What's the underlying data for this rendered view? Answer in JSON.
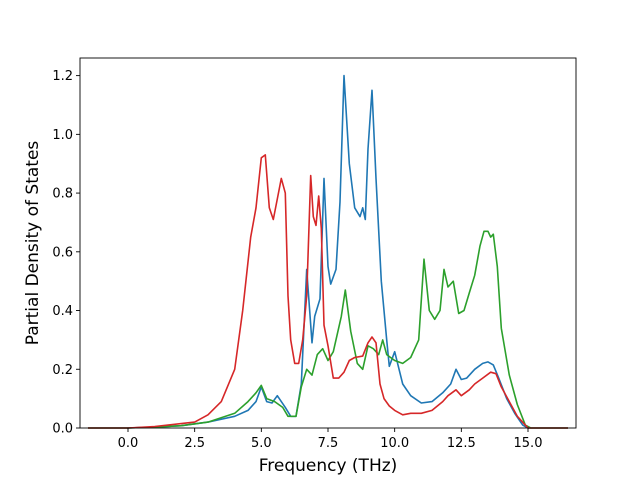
{
  "chart_data": {
    "type": "line",
    "title": "",
    "xlabel": "Frequency (THz)",
    "ylabel": "Partial Density of States",
    "xlim": [
      -1.8,
      16.8
    ],
    "ylim": [
      0,
      1.26
    ],
    "xticks": [
      0.0,
      2.5,
      5.0,
      7.5,
      10.0,
      12.5,
      15.0
    ],
    "xtick_labels": [
      "0.0",
      "2.5",
      "5.0",
      "7.5",
      "10.0",
      "12.5",
      "15.0"
    ],
    "yticks": [
      0.0,
      0.2,
      0.4,
      0.6,
      0.8,
      1.0,
      1.2
    ],
    "ytick_labels": [
      "0.0",
      "0.2",
      "0.4",
      "0.6",
      "0.8",
      "1.0",
      "1.2"
    ],
    "grid": false,
    "legend": "none",
    "series": [
      {
        "color": "#1f77b4",
        "points": [
          [
            -1.5,
            0
          ],
          [
            0,
            0
          ],
          [
            1,
            0.003
          ],
          [
            2,
            0.008
          ],
          [
            3,
            0.02
          ],
          [
            4,
            0.04
          ],
          [
            4.5,
            0.06
          ],
          [
            4.8,
            0.09
          ],
          [
            5.0,
            0.14
          ],
          [
            5.2,
            0.09
          ],
          [
            5.4,
            0.085
          ],
          [
            5.6,
            0.11
          ],
          [
            5.9,
            0.07
          ],
          [
            6.1,
            0.04
          ],
          [
            6.3,
            0.04
          ],
          [
            6.5,
            0.15
          ],
          [
            6.7,
            0.54
          ],
          [
            6.9,
            0.29
          ],
          [
            7.0,
            0.38
          ],
          [
            7.2,
            0.44
          ],
          [
            7.35,
            0.85
          ],
          [
            7.5,
            0.55
          ],
          [
            7.6,
            0.49
          ],
          [
            7.8,
            0.54
          ],
          [
            7.95,
            0.77
          ],
          [
            8.1,
            1.2
          ],
          [
            8.3,
            0.9
          ],
          [
            8.5,
            0.75
          ],
          [
            8.7,
            0.72
          ],
          [
            8.8,
            0.75
          ],
          [
            8.9,
            0.71
          ],
          [
            9.0,
            0.95
          ],
          [
            9.15,
            1.15
          ],
          [
            9.3,
            0.85
          ],
          [
            9.5,
            0.5
          ],
          [
            9.7,
            0.3
          ],
          [
            9.8,
            0.21
          ],
          [
            10.0,
            0.26
          ],
          [
            10.3,
            0.15
          ],
          [
            10.6,
            0.11
          ],
          [
            11.0,
            0.085
          ],
          [
            11.4,
            0.09
          ],
          [
            11.8,
            0.12
          ],
          [
            12.1,
            0.15
          ],
          [
            12.3,
            0.2
          ],
          [
            12.5,
            0.165
          ],
          [
            12.7,
            0.17
          ],
          [
            13.0,
            0.2
          ],
          [
            13.3,
            0.22
          ],
          [
            13.5,
            0.225
          ],
          [
            13.7,
            0.215
          ],
          [
            13.9,
            0.17
          ],
          [
            14.2,
            0.1
          ],
          [
            14.5,
            0.05
          ],
          [
            14.8,
            0.01
          ],
          [
            15.0,
            0
          ],
          [
            16.5,
            0
          ]
        ]
      },
      {
        "color": "#2ca02c",
        "points": [
          [
            -1.5,
            0
          ],
          [
            0,
            0
          ],
          [
            1,
            0.003
          ],
          [
            2,
            0.008
          ],
          [
            3,
            0.02
          ],
          [
            4,
            0.05
          ],
          [
            4.5,
            0.09
          ],
          [
            4.8,
            0.12
          ],
          [
            5.0,
            0.145
          ],
          [
            5.2,
            0.1
          ],
          [
            5.5,
            0.09
          ],
          [
            5.8,
            0.07
          ],
          [
            6.0,
            0.04
          ],
          [
            6.3,
            0.04
          ],
          [
            6.5,
            0.14
          ],
          [
            6.7,
            0.2
          ],
          [
            6.9,
            0.18
          ],
          [
            7.1,
            0.25
          ],
          [
            7.3,
            0.27
          ],
          [
            7.5,
            0.23
          ],
          [
            7.7,
            0.26
          ],
          [
            8.0,
            0.38
          ],
          [
            8.15,
            0.47
          ],
          [
            8.35,
            0.33
          ],
          [
            8.6,
            0.22
          ],
          [
            8.8,
            0.2
          ],
          [
            9.0,
            0.28
          ],
          [
            9.2,
            0.27
          ],
          [
            9.4,
            0.25
          ],
          [
            9.55,
            0.3
          ],
          [
            9.7,
            0.25
          ],
          [
            10.0,
            0.23
          ],
          [
            10.3,
            0.22
          ],
          [
            10.6,
            0.24
          ],
          [
            10.9,
            0.3
          ],
          [
            11.1,
            0.575
          ],
          [
            11.3,
            0.4
          ],
          [
            11.5,
            0.37
          ],
          [
            11.7,
            0.4
          ],
          [
            11.85,
            0.54
          ],
          [
            12.0,
            0.48
          ],
          [
            12.2,
            0.5
          ],
          [
            12.4,
            0.39
          ],
          [
            12.6,
            0.4
          ],
          [
            12.8,
            0.46
          ],
          [
            13.0,
            0.52
          ],
          [
            13.2,
            0.62
          ],
          [
            13.35,
            0.67
          ],
          [
            13.5,
            0.67
          ],
          [
            13.6,
            0.65
          ],
          [
            13.7,
            0.66
          ],
          [
            13.85,
            0.55
          ],
          [
            14.0,
            0.34
          ],
          [
            14.3,
            0.18
          ],
          [
            14.6,
            0.08
          ],
          [
            14.9,
            0.01
          ],
          [
            15.1,
            0
          ],
          [
            16.5,
            0
          ]
        ]
      },
      {
        "color": "#d62728",
        "points": [
          [
            -1.5,
            0
          ],
          [
            0,
            0
          ],
          [
            1,
            0.005
          ],
          [
            2,
            0.015
          ],
          [
            2.5,
            0.02
          ],
          [
            3,
            0.045
          ],
          [
            3.5,
            0.09
          ],
          [
            4,
            0.2
          ],
          [
            4.3,
            0.4
          ],
          [
            4.6,
            0.65
          ],
          [
            4.8,
            0.75
          ],
          [
            5.0,
            0.92
          ],
          [
            5.15,
            0.93
          ],
          [
            5.3,
            0.75
          ],
          [
            5.45,
            0.71
          ],
          [
            5.6,
            0.78
          ],
          [
            5.75,
            0.85
          ],
          [
            5.9,
            0.8
          ],
          [
            6.0,
            0.45
          ],
          [
            6.1,
            0.3
          ],
          [
            6.25,
            0.22
          ],
          [
            6.4,
            0.22
          ],
          [
            6.55,
            0.3
          ],
          [
            6.7,
            0.45
          ],
          [
            6.85,
            0.86
          ],
          [
            6.95,
            0.72
          ],
          [
            7.05,
            0.69
          ],
          [
            7.15,
            0.79
          ],
          [
            7.25,
            0.68
          ],
          [
            7.35,
            0.35
          ],
          [
            7.5,
            0.28
          ],
          [
            7.7,
            0.17
          ],
          [
            7.9,
            0.17
          ],
          [
            8.1,
            0.19
          ],
          [
            8.3,
            0.23
          ],
          [
            8.5,
            0.24
          ],
          [
            8.8,
            0.245
          ],
          [
            9.0,
            0.29
          ],
          [
            9.15,
            0.31
          ],
          [
            9.3,
            0.29
          ],
          [
            9.45,
            0.15
          ],
          [
            9.6,
            0.1
          ],
          [
            9.8,
            0.075
          ],
          [
            10.0,
            0.06
          ],
          [
            10.3,
            0.045
          ],
          [
            10.6,
            0.05
          ],
          [
            11.0,
            0.05
          ],
          [
            11.4,
            0.06
          ],
          [
            11.8,
            0.09
          ],
          [
            12.0,
            0.11
          ],
          [
            12.3,
            0.13
          ],
          [
            12.5,
            0.11
          ],
          [
            12.8,
            0.13
          ],
          [
            13.0,
            0.15
          ],
          [
            13.3,
            0.17
          ],
          [
            13.6,
            0.19
          ],
          [
            13.8,
            0.185
          ],
          [
            14.0,
            0.14
          ],
          [
            14.3,
            0.09
          ],
          [
            14.6,
            0.04
          ],
          [
            14.9,
            0.01
          ],
          [
            15.0,
            0
          ],
          [
            16.5,
            0
          ]
        ]
      }
    ]
  }
}
